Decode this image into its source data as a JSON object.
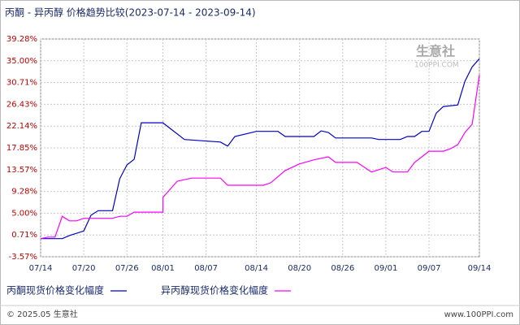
{
  "chart_data": {
    "type": "line",
    "title": "丙酮 - 异丙醇 价格趋势比较(2023-07-14 - 2023-09-14)",
    "xlim": [
      "07/14",
      "09/14"
    ],
    "xticks": [
      "07/14",
      "07/20",
      "07/26",
      "08/01",
      "08/07",
      "08/14",
      "08/20",
      "08/26",
      "09/01",
      "09/07",
      "09/14"
    ],
    "ylim": [
      -3.57,
      39.28
    ],
    "yticks": [
      {
        "value": -3.57,
        "label": "-3.57%"
      },
      {
        "value": 0.71,
        "label": "0.71%"
      },
      {
        "value": 5.0,
        "label": "5.00%"
      },
      {
        "value": 9.28,
        "label": "9.28%"
      },
      {
        "value": 13.57,
        "label": "13.57%"
      },
      {
        "value": 17.85,
        "label": "17.85%"
      },
      {
        "value": 22.14,
        "label": "22.14%"
      },
      {
        "value": 26.43,
        "label": "26.43%"
      },
      {
        "value": 30.71,
        "label": "30.71%"
      },
      {
        "value": 35.0,
        "label": "35.00%"
      },
      {
        "value": 39.28,
        "label": "39.28%"
      }
    ],
    "grid": true,
    "series": [
      {
        "name": "丙酮现货价格变化幅度",
        "color": "#0000cc",
        "x": [
          "07/14",
          "07/17",
          "07/18",
          "07/20",
          "07/21",
          "07/22",
          "07/24",
          "07/25",
          "07/26",
          "07/27",
          "07/28",
          "07/31",
          "08/02",
          "08/04",
          "08/08",
          "08/09",
          "08/10",
          "08/11",
          "08/14",
          "08/17",
          "08/18",
          "08/22",
          "08/23",
          "08/24",
          "08/25",
          "08/30",
          "08/31",
          "09/03",
          "09/04",
          "09/05",
          "09/06",
          "09/07",
          "09/08",
          "09/09",
          "09/11",
          "09/12",
          "09/13",
          "09/14"
        ],
        "values": [
          0,
          0,
          0.6,
          1.5,
          4.6,
          5.5,
          5.5,
          11.8,
          14.5,
          15.6,
          22.8,
          22.8,
          21.7,
          19.5,
          19.1,
          19.0,
          18.2,
          20.1,
          21.1,
          21.1,
          20.1,
          20.1,
          21.2,
          20.9,
          19.8,
          19.8,
          19.5,
          19.5,
          20.1,
          20.1,
          21.1,
          21.1,
          24.7,
          26.0,
          26.3,
          31.0,
          33.8,
          35.4
        ]
      },
      {
        "name": "异丙醇现货价格变化幅度",
        "color": "#ff00ff",
        "x": [
          "07/14",
          "07/15",
          "07/16",
          "07/17",
          "07/18",
          "07/19",
          "07/20",
          "07/24",
          "07/25",
          "07/26",
          "07/27",
          "07/31",
          "08/01",
          "08/03",
          "08/05",
          "08/09",
          "08/10",
          "08/15",
          "08/16",
          "08/18",
          "08/20",
          "08/22",
          "08/24",
          "08/25",
          "08/28",
          "08/30",
          "09/01",
          "09/02",
          "09/04",
          "09/05",
          "09/06",
          "09/07",
          "09/09",
          "09/10",
          "09/11",
          "09/12",
          "09/13",
          "09/14"
        ],
        "values": [
          0,
          0.3,
          0.3,
          4.4,
          3.5,
          3.5,
          4.0,
          4.0,
          4.4,
          4.4,
          5.2,
          5.2,
          8.1,
          11.3,
          11.9,
          11.9,
          10.5,
          10.5,
          11.0,
          13.4,
          14.7,
          15.5,
          16.1,
          15.0,
          15.0,
          13.1,
          14.0,
          13.1,
          13.1,
          15.0,
          16.1,
          17.2,
          17.2,
          17.7,
          18.5,
          20.9,
          22.5,
          32.2
        ]
      }
    ],
    "watermark": "生意社",
    "watermark_sub": "100PPI.COM",
    "footer_left": "© 2025.05 生意社",
    "footer_right": "www.100PPI.com"
  }
}
